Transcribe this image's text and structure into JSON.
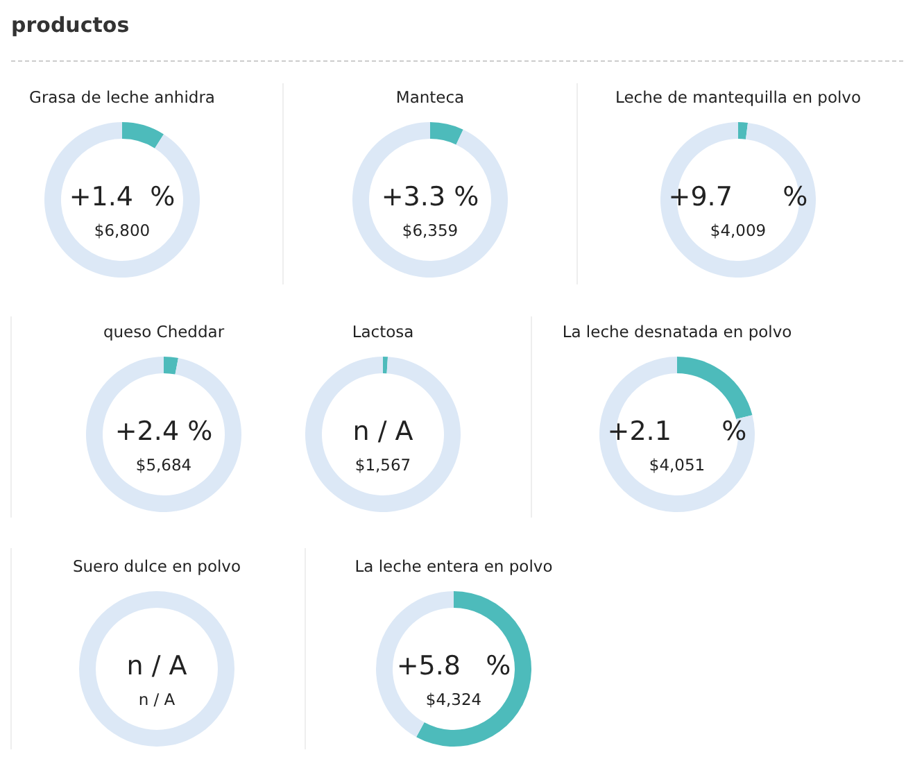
{
  "chart_data": [
    {
      "type": "other",
      "title": "productos"
    },
    {
      "type": "donut",
      "title": "Grasa de leche anhidra",
      "categories": [
        null,
        null
      ],
      "values": [
        9,
        91
      ],
      "colors": [
        "#4dbbbb",
        "#dce8f6"
      ],
      "annotations": [
        "+1.4  %",
        "$6,800"
      ]
    },
    {
      "type": "donut",
      "title": "Manteca",
      "categories": [
        null,
        null
      ],
      "values": [
        7,
        93
      ],
      "colors": [
        "#4dbbbb",
        "#dce8f6"
      ],
      "annotations": [
        "+3.3 %",
        "$6,359"
      ]
    },
    {
      "type": "donut",
      "title": "Leche de mantequilla en polvo",
      "categories": [
        null,
        null
      ],
      "values": [
        2,
        98
      ],
      "colors": [
        "#4dbbbb",
        "#dce8f6"
      ],
      "annotations": [
        "+9.7      %",
        "$4,009"
      ]
    },
    {
      "type": "donut",
      "title": "queso Cheddar",
      "categories": [
        null,
        null
      ],
      "values": [
        3,
        97
      ],
      "colors": [
        "#4dbbbb",
        "#dce8f6"
      ],
      "annotations": [
        "+2.4 %",
        "$5,684"
      ]
    },
    {
      "type": "donut",
      "title": "Lactosa",
      "categories": [
        null,
        null
      ],
      "values": [
        1,
        99
      ],
      "colors": [
        "#4dbbbb",
        "#dce8f6"
      ],
      "annotations": [
        "n / A",
        "$1,567"
      ]
    },
    {
      "type": "donut",
      "title": "La leche desnatada en polvo",
      "categories": [
        null,
        null
      ],
      "values": [
        21,
        79
      ],
      "colors": [
        "#4dbbbb",
        "#dce8f6"
      ],
      "annotations": [
        "+2.1      %",
        "$4,051"
      ]
    },
    {
      "type": "donut",
      "title": "Suero dulce en polvo",
      "categories": [
        null
      ],
      "values": [
        100
      ],
      "colors": [
        "#dce8f6"
      ],
      "annotations": [
        "n / A",
        "n / A"
      ]
    },
    {
      "type": "donut",
      "title": "La leche entera en polvo",
      "categories": [
        null,
        null
      ],
      "values": [
        58,
        42
      ],
      "colors": [
        "#4dbbbb",
        "#dce8f6"
      ],
      "annotations": [
        "+5.8   %",
        "$4,324"
      ]
    }
  ]
}
